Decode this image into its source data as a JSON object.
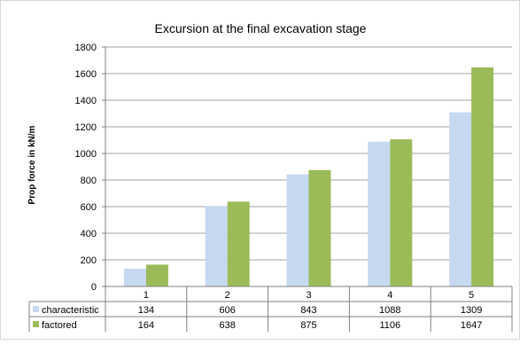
{
  "chart_data": {
    "type": "bar",
    "title": "Excursion at the final excavation stage",
    "xlabel": "",
    "ylabel": "Prop force in kN/m",
    "categories": [
      "1",
      "2",
      "3",
      "4",
      "5"
    ],
    "ylim": [
      0,
      1800
    ],
    "yticks": [
      0,
      200,
      400,
      600,
      800,
      1000,
      1200,
      1400,
      1600,
      1800
    ],
    "grid": true,
    "legend": "data-table",
    "series": [
      {
        "name": "characteristic",
        "color": "#c6d9f1",
        "values": [
          134,
          606,
          843,
          1088,
          1309
        ],
        "labels": [
          "134",
          "606",
          "843",
          "1088",
          "1309"
        ]
      },
      {
        "name": "factored",
        "color": "#9bbb59",
        "values": [
          164,
          638,
          875,
          1106,
          1647
        ],
        "labels": [
          "164",
          "638",
          "875",
          "1106",
          "1647"
        ]
      }
    ]
  }
}
